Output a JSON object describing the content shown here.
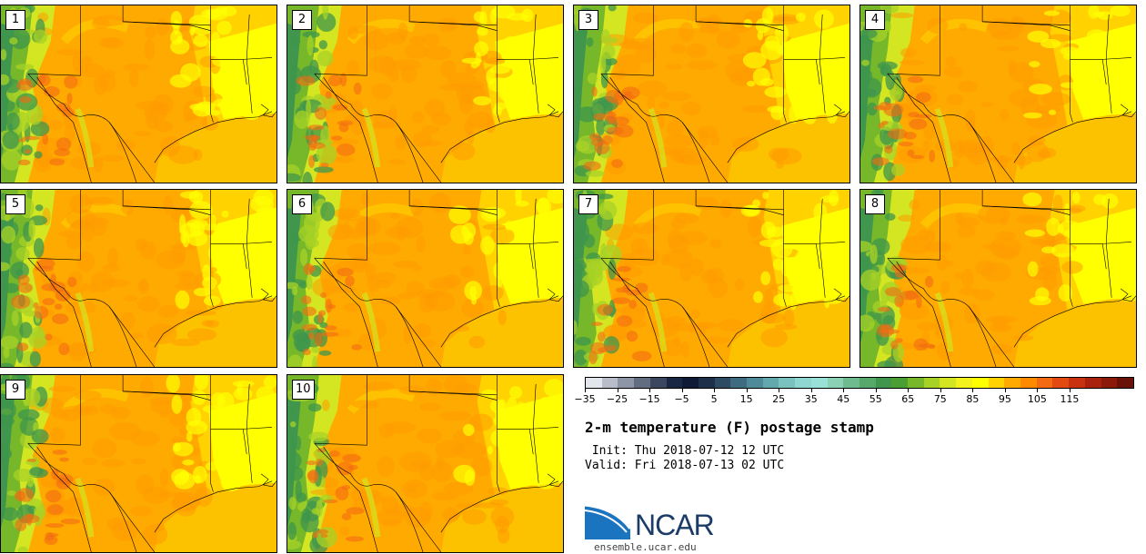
{
  "panels": [
    {
      "label": "1"
    },
    {
      "label": "2"
    },
    {
      "label": "3"
    },
    {
      "label": "4"
    },
    {
      "label": "5"
    },
    {
      "label": "6"
    },
    {
      "label": "7"
    },
    {
      "label": "8"
    },
    {
      "label": "9"
    },
    {
      "label": "10"
    }
  ],
  "colorbar": {
    "colors": [
      "#e3e6ec",
      "#b8bdc9",
      "#8d95a6",
      "#636d82",
      "#3b475f",
      "#1a2744",
      "#0f1b36",
      "#1e2f4a",
      "#2f4a63",
      "#3f6b80",
      "#4f8a98",
      "#63a8ad",
      "#7ac2c0",
      "#8fd6d0",
      "#99e0d6",
      "#8ad1b5",
      "#6dbb8f",
      "#56a86b",
      "#3f964c",
      "#4a9e33",
      "#76b82a",
      "#a8d125",
      "#d3e621",
      "#f4f21d",
      "#ffff00",
      "#ffd200",
      "#ffaa00",
      "#ff8a00",
      "#f46a12",
      "#e24a12",
      "#c8320f",
      "#a8220d",
      "#8c1a0b",
      "#6a1208"
    ],
    "tick_labels": [
      "−35",
      "−25",
      "−15",
      "−5",
      "5",
      "15",
      "25",
      "35",
      "45",
      "55",
      "65",
      "75",
      "85",
      "95",
      "105",
      "115"
    ]
  },
  "title": "2-m temperature (F) postage stamp",
  "init_text": " Init: Thu 2018-07-12 12 UTC",
  "valid_text": "Valid: Fri 2018-07-13 02 UTC",
  "logo_text": "NCAR",
  "url": "ensemble.ucar.edu"
}
